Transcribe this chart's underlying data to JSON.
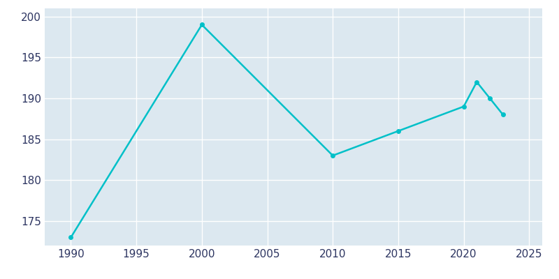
{
  "years": [
    1990,
    2000,
    2010,
    2015,
    2020,
    2021,
    2022,
    2023
  ],
  "population": [
    173,
    199,
    183,
    186,
    189,
    192,
    190,
    188
  ],
  "line_color": "#00c0c8",
  "marker": "o",
  "marker_size": 4,
  "bg_color": "#ffffff",
  "plot_bg_color": "#dce8f0",
  "xlim": [
    1988,
    2026
  ],
  "ylim": [
    172,
    201
  ],
  "xticks": [
    1990,
    1995,
    2000,
    2005,
    2010,
    2015,
    2020,
    2025
  ],
  "yticks": [
    175,
    180,
    185,
    190,
    195,
    200
  ],
  "grid_color": "#ffffff",
  "tick_color": "#2d3561",
  "fontsize": 11
}
